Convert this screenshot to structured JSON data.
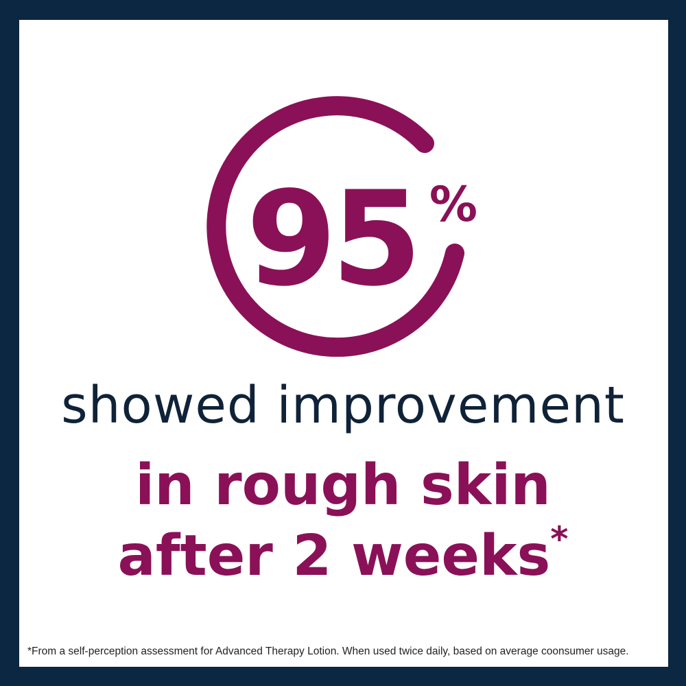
{
  "stat": {
    "value": "95",
    "unit": "%",
    "fraction": 0.95
  },
  "headline": {
    "line1": "showed improvement",
    "line2": "in rough skin",
    "line3": "after 2 weeks",
    "asterisk": "*"
  },
  "footnote": "*From a self-perception assessment for Advanced Therapy Lotion. When used twice daily, based on average coonsumer usage.",
  "colors": {
    "accent": "#8a1157",
    "text": "#0f2238",
    "border": "#0c2741"
  }
}
